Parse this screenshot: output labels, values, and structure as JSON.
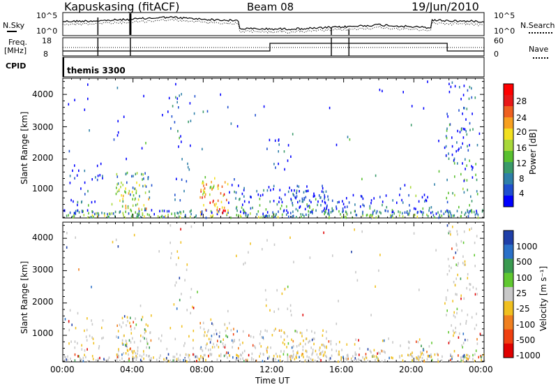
{
  "header": {
    "station": "Kapuskasing (fitACF)",
    "beam": "Beam 08",
    "date": "19/Jun/2010"
  },
  "sky_panel": {
    "left_label": "N.Sky",
    "right_label": "N.Search",
    "ticks": [
      "10^5",
      "10^0"
    ]
  },
  "freq_panel": {
    "left_label_top": "Freq.",
    "left_label_unit": "[MHz]",
    "left_ticks": [
      "18",
      "8"
    ],
    "right_label": "Nave",
    "right_ticks": [
      "60",
      "0"
    ]
  },
  "cpid_panel": {
    "label": "CPID",
    "mode": "themis 3300"
  },
  "x_axis": {
    "label": "Time UT",
    "ticks": [
      "00:00",
      "04:00",
      "08:00",
      "12:00",
      "16:00",
      "20:00",
      "00:00"
    ]
  },
  "chart_data": [
    {
      "type": "heatmap",
      "quantity": "Power",
      "ylabel": "Slant Range [km]",
      "xlabel": "",
      "y_ticks": [
        "1000",
        "2000",
        "3000",
        "4000"
      ],
      "ylim": [
        180,
        4500
      ],
      "colorbar_label": "Power [dB]",
      "colorbar_ticks": [
        "28",
        "24",
        "20",
        "16",
        "12",
        "8",
        "4"
      ],
      "colorbar_range": [
        0,
        30
      ],
      "colors": [
        "#0000ff",
        "#1f4fcf",
        "#2e7fa8",
        "#3a9a6a",
        "#59c030",
        "#a8d83a",
        "#f2e020",
        "#f7a020",
        "#ee6020",
        "#e81818",
        "#ff0000"
      ]
    },
    {
      "type": "heatmap",
      "quantity": "Velocity",
      "ylabel": "Slant Range [km]",
      "xlabel": "Time UT",
      "y_ticks": [
        "1000",
        "2000",
        "3000",
        "4000"
      ],
      "ylim": [
        180,
        4500
      ],
      "colorbar_label": "Velocity [m s⁻¹]",
      "colorbar_ticks": [
        "1000",
        "500",
        "100",
        "25",
        "-25",
        "-100",
        "-500",
        "-1000"
      ],
      "colors": [
        "#1f3fa8",
        "#2a70c8",
        "#3a9a50",
        "#60c830",
        "#c8c8c8",
        "#f0c020",
        "#f08020",
        "#f04010",
        "#e00000"
      ]
    }
  ]
}
